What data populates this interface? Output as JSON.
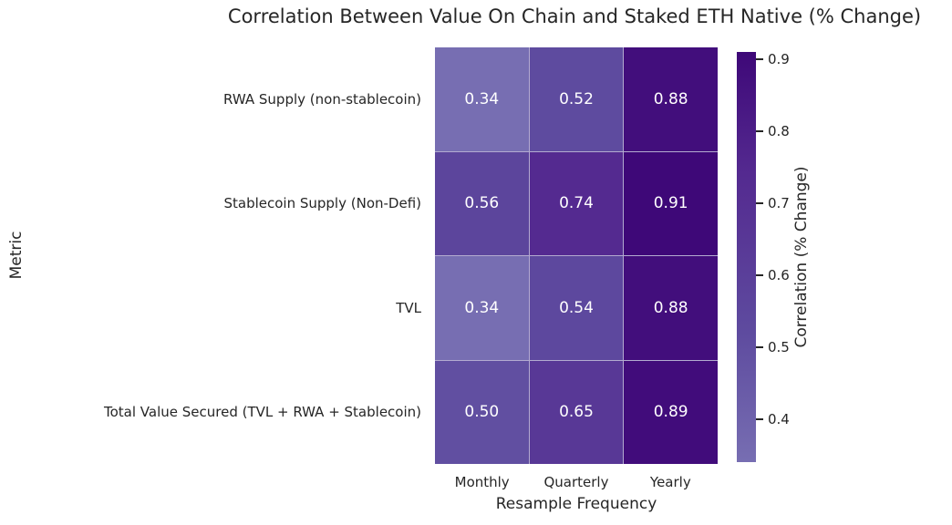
{
  "chart_data": {
    "type": "heatmap",
    "title": "Correlation Between Value On Chain and Staked ETH Native (% Change)",
    "xlabel": "Resample Frequency",
    "ylabel": "Metric",
    "x_categories": [
      "Monthly",
      "Quarterly",
      "Yearly"
    ],
    "y_categories": [
      "RWA Supply (non-stablecoin)",
      "Stablecoin Supply (Non-Defi)",
      "TVL",
      "Total Value Secured (TVL + RWA + Stablecoin)"
    ],
    "values": [
      [
        0.34,
        0.52,
        0.88
      ],
      [
        0.56,
        0.74,
        0.91
      ],
      [
        0.34,
        0.54,
        0.88
      ],
      [
        0.5,
        0.65,
        0.89
      ]
    ],
    "value_labels": [
      [
        "0.34",
        "0.52",
        "0.88"
      ],
      [
        "0.56",
        "0.74",
        "0.91"
      ],
      [
        "0.34",
        "0.54",
        "0.88"
      ],
      [
        "0.50",
        "0.65",
        "0.89"
      ]
    ],
    "annotation_text_color": "#ffffff",
    "grid_line_color": "#b3abd0",
    "colorbar": {
      "label": "Correlation (% Change)",
      "vmin": 0.34,
      "vmax": 0.91,
      "tick_values": [
        0.9,
        0.8,
        0.7,
        0.6,
        0.5,
        0.4
      ],
      "tick_labels": [
        "0.9",
        "0.8",
        "0.7",
        "0.6",
        "0.5",
        "0.4"
      ]
    },
    "colormap_stops": [
      {
        "value": 0.34,
        "color": "#776eb2"
      },
      {
        "value": 0.52,
        "color": "#5e4b9f"
      },
      {
        "value": 0.74,
        "color": "#542a90"
      },
      {
        "value": 0.91,
        "color": "#3e0878"
      }
    ],
    "legend_position": "right",
    "grid": false
  },
  "colors": {
    "background": "#ffffff",
    "text": "#262626",
    "accent_dark": "#3e0878",
    "accent_light": "#776eb2"
  }
}
